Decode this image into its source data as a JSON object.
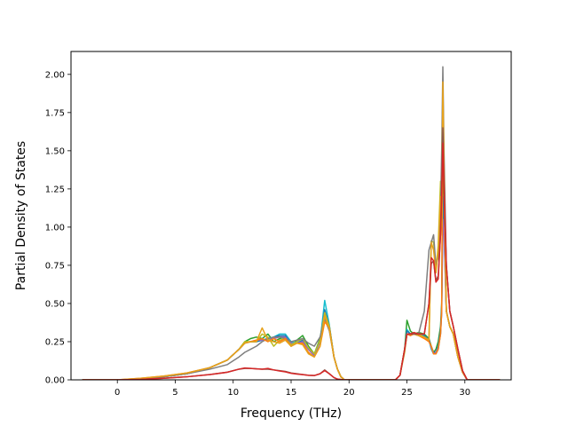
{
  "chart_data": {
    "type": "line",
    "title": "",
    "xlabel": "Frequency (THz)",
    "ylabel": "Partial Density of States",
    "xlim": [
      -4.0,
      34.0
    ],
    "ylim": [
      0.0,
      2.15
    ],
    "xticks": [
      0,
      5,
      10,
      15,
      20,
      25,
      30
    ],
    "yticks": [
      0.0,
      0.25,
      0.5,
      0.75,
      1.0,
      1.25,
      1.5,
      1.75,
      2.0
    ],
    "xtick_labels": [
      "0",
      "5",
      "10",
      "15",
      "20",
      "25",
      "30"
    ],
    "ytick_labels": [
      "0.00",
      "0.25",
      "0.50",
      "0.75",
      "1.00",
      "1.25",
      "1.50",
      "1.75",
      "2.00"
    ],
    "grid": false,
    "legend": "none",
    "series": [
      {
        "color": "#2ca02c",
        "x": [
          -3.0,
          0.0,
          2.0,
          4.0,
          6.0,
          8.0,
          9.5,
          10.5,
          11.0,
          11.5,
          12.0,
          12.5,
          13.0,
          13.5,
          14.0,
          14.5,
          15.0,
          15.5,
          16.0,
          16.5,
          17.0,
          17.5,
          17.9,
          18.3,
          18.7,
          19.0,
          19.3,
          19.6,
          24.0,
          24.4,
          24.8,
          25.0,
          25.3,
          25.6,
          26.0,
          26.5,
          26.9,
          27.1,
          27.3,
          27.5,
          27.7,
          27.9,
          28.0,
          28.1,
          28.2,
          28.4,
          28.7,
          29.0,
          29.4,
          29.8,
          30.2,
          31.0,
          33.0
        ],
        "y": [
          0.0,
          0.0,
          0.005,
          0.02,
          0.04,
          0.08,
          0.13,
          0.2,
          0.25,
          0.27,
          0.28,
          0.27,
          0.3,
          0.25,
          0.27,
          0.28,
          0.22,
          0.26,
          0.29,
          0.22,
          0.17,
          0.27,
          0.45,
          0.35,
          0.15,
          0.07,
          0.02,
          0.0,
          0.0,
          0.03,
          0.2,
          0.39,
          0.32,
          0.3,
          0.31,
          0.3,
          0.27,
          0.22,
          0.18,
          0.2,
          0.25,
          0.35,
          0.5,
          1.45,
          1.2,
          0.45,
          0.35,
          0.3,
          0.15,
          0.05,
          0.0,
          0.0,
          0.0
        ]
      },
      {
        "color": "#17becf",
        "x": [
          -3.0,
          0.0,
          2.0,
          4.0,
          6.0,
          8.0,
          9.5,
          10.5,
          11.0,
          11.5,
          12.0,
          12.5,
          13.0,
          13.5,
          14.0,
          14.5,
          15.0,
          15.5,
          16.0,
          16.5,
          17.0,
          17.5,
          17.9,
          18.3,
          18.7,
          19.0,
          19.3,
          19.6,
          24.0,
          24.4,
          24.8,
          25.0,
          25.3,
          25.6,
          26.0,
          26.5,
          26.9,
          27.1,
          27.3,
          27.5,
          27.7,
          27.9,
          28.0,
          28.1,
          28.2,
          28.4,
          28.7,
          29.0,
          29.4,
          29.8,
          30.2,
          31.0,
          33.0
        ],
        "y": [
          0.0,
          0.0,
          0.005,
          0.02,
          0.04,
          0.08,
          0.13,
          0.2,
          0.24,
          0.25,
          0.25,
          0.26,
          0.27,
          0.28,
          0.3,
          0.3,
          0.25,
          0.24,
          0.25,
          0.2,
          0.16,
          0.25,
          0.52,
          0.36,
          0.15,
          0.07,
          0.02,
          0.0,
          0.0,
          0.03,
          0.2,
          0.33,
          0.3,
          0.3,
          0.3,
          0.29,
          0.26,
          0.2,
          0.17,
          0.17,
          0.2,
          0.3,
          0.45,
          1.1,
          1.0,
          0.45,
          0.35,
          0.3,
          0.15,
          0.05,
          0.0,
          0.0,
          0.0
        ]
      },
      {
        "color": "#1f77b4",
        "x": [
          -3.0,
          0.0,
          2.0,
          4.0,
          6.0,
          8.0,
          9.5,
          10.5,
          11.0,
          11.5,
          12.0,
          12.5,
          13.0,
          13.5,
          14.0,
          14.5,
          15.0,
          15.5,
          16.0,
          16.5,
          17.0,
          17.5,
          17.9,
          18.3,
          18.7,
          19.0,
          19.3,
          19.6,
          24.0,
          24.4,
          24.8,
          25.0,
          25.3,
          25.6,
          26.0,
          26.5,
          26.9,
          27.1,
          27.3,
          27.5,
          27.7,
          27.9,
          28.0,
          28.1,
          28.2,
          28.4,
          28.7,
          29.0,
          29.4,
          29.8,
          30.2,
          31.0,
          33.0
        ],
        "y": [
          0.0,
          0.0,
          0.005,
          0.02,
          0.04,
          0.08,
          0.13,
          0.2,
          0.24,
          0.25,
          0.25,
          0.26,
          0.27,
          0.28,
          0.29,
          0.29,
          0.24,
          0.24,
          0.26,
          0.2,
          0.16,
          0.25,
          0.46,
          0.35,
          0.15,
          0.07,
          0.02,
          0.0,
          0.0,
          0.03,
          0.2,
          0.32,
          0.3,
          0.3,
          0.29,
          0.29,
          0.26,
          0.21,
          0.18,
          0.18,
          0.22,
          0.32,
          0.47,
          1.2,
          1.05,
          0.45,
          0.35,
          0.3,
          0.15,
          0.05,
          0.0,
          0.0,
          0.0
        ]
      },
      {
        "color": "#9467bd",
        "x": [
          -3.0,
          0.0,
          2.0,
          4.0,
          6.0,
          8.0,
          9.5,
          10.5,
          11.0,
          11.5,
          12.0,
          12.5,
          13.0,
          13.5,
          14.0,
          14.5,
          15.0,
          15.5,
          16.0,
          16.5,
          17.0,
          17.5,
          17.9,
          18.3,
          18.7,
          19.0,
          19.3,
          19.6,
          24.0,
          24.4,
          24.8,
          25.0,
          25.3,
          25.6,
          26.0,
          26.5,
          26.9,
          27.1,
          27.3,
          27.5,
          27.7,
          27.9,
          28.0,
          28.1,
          28.2,
          28.4,
          28.7,
          29.0,
          29.4,
          29.8,
          30.2,
          31.0,
          33.0
        ],
        "y": [
          0.0,
          0.0,
          0.005,
          0.02,
          0.04,
          0.08,
          0.13,
          0.2,
          0.24,
          0.25,
          0.26,
          0.26,
          0.26,
          0.27,
          0.28,
          0.28,
          0.24,
          0.24,
          0.25,
          0.2,
          0.16,
          0.25,
          0.44,
          0.34,
          0.15,
          0.07,
          0.02,
          0.0,
          0.0,
          0.03,
          0.2,
          0.3,
          0.29,
          0.3,
          0.29,
          0.28,
          0.26,
          0.21,
          0.17,
          0.18,
          0.21,
          0.3,
          0.44,
          1.05,
          0.95,
          0.45,
          0.35,
          0.3,
          0.15,
          0.05,
          0.0,
          0.0,
          0.0
        ]
      },
      {
        "color": "#bcbd22",
        "x": [
          -3.0,
          0.0,
          2.0,
          4.0,
          6.0,
          8.0,
          9.5,
          10.5,
          11.0,
          11.5,
          12.0,
          12.5,
          13.0,
          13.5,
          14.0,
          14.5,
          15.0,
          15.5,
          16.0,
          16.5,
          17.0,
          17.5,
          17.9,
          18.3,
          18.7,
          19.0,
          19.3,
          19.6,
          24.0,
          24.4,
          24.8,
          25.0,
          25.3,
          25.6,
          26.0,
          26.5,
          26.9,
          27.1,
          27.3,
          27.5,
          27.7,
          27.9,
          28.0,
          28.1,
          28.2,
          28.4,
          28.7,
          29.0,
          29.4,
          29.8,
          30.2,
          31.0,
          33.0
        ],
        "y": [
          0.0,
          0.0,
          0.005,
          0.02,
          0.04,
          0.08,
          0.13,
          0.2,
          0.25,
          0.25,
          0.25,
          0.3,
          0.28,
          0.22,
          0.26,
          0.27,
          0.23,
          0.25,
          0.27,
          0.21,
          0.17,
          0.26,
          0.44,
          0.35,
          0.15,
          0.07,
          0.02,
          0.0,
          0.0,
          0.03,
          0.18,
          0.3,
          0.3,
          0.31,
          0.3,
          0.28,
          0.26,
          0.91,
          0.9,
          0.72,
          0.88,
          1.3,
          1.1,
          1.9,
          1.35,
          0.45,
          0.35,
          0.3,
          0.15,
          0.05,
          0.0,
          0.0,
          0.0
        ]
      },
      {
        "color": "#7f7f7f",
        "x": [
          -3.0,
          0.0,
          2.0,
          4.0,
          6.0,
          8.0,
          9.5,
          10.5,
          11.0,
          11.5,
          12.0,
          12.5,
          13.0,
          13.5,
          14.0,
          14.5,
          15.0,
          15.5,
          16.0,
          16.5,
          17.0,
          17.5,
          17.9,
          18.3,
          18.7,
          19.0,
          19.3,
          19.6,
          24.0,
          24.4,
          24.8,
          25.0,
          25.3,
          25.6,
          26.0,
          26.5,
          26.9,
          27.1,
          27.3,
          27.5,
          27.7,
          27.9,
          28.0,
          28.1,
          28.2,
          28.4,
          28.7,
          29.0,
          29.4,
          29.8,
          30.2,
          31.0,
          33.0
        ],
        "y": [
          0.0,
          0.0,
          0.005,
          0.02,
          0.04,
          0.07,
          0.1,
          0.15,
          0.18,
          0.2,
          0.22,
          0.25,
          0.27,
          0.28,
          0.28,
          0.27,
          0.25,
          0.26,
          0.27,
          0.24,
          0.22,
          0.28,
          0.4,
          0.32,
          0.15,
          0.07,
          0.02,
          0.0,
          0.0,
          0.03,
          0.2,
          0.3,
          0.3,
          0.3,
          0.3,
          0.45,
          0.85,
          0.9,
          0.95,
          0.75,
          0.8,
          1.1,
          1.5,
          2.05,
          1.5,
          0.75,
          0.45,
          0.35,
          0.2,
          0.06,
          0.0,
          0.0,
          0.0
        ]
      },
      {
        "color": "#ff7f0e",
        "x": [
          -3.0,
          0.0,
          2.0,
          4.0,
          6.0,
          8.0,
          9.5,
          10.5,
          11.0,
          11.5,
          12.0,
          12.5,
          13.0,
          13.5,
          14.0,
          14.5,
          15.0,
          15.5,
          16.0,
          16.5,
          17.0,
          17.5,
          17.9,
          18.3,
          18.7,
          19.0,
          19.3,
          19.6,
          24.0,
          24.4,
          24.8,
          25.0,
          25.3,
          25.6,
          26.0,
          26.5,
          26.9,
          27.1,
          27.3,
          27.5,
          27.7,
          27.9,
          28.0,
          28.1,
          28.2,
          28.4,
          28.7,
          29.0,
          29.4,
          29.8,
          30.2,
          31.0,
          33.0
        ],
        "y": [
          0.0,
          0.0,
          0.01,
          0.025,
          0.045,
          0.08,
          0.13,
          0.2,
          0.24,
          0.25,
          0.26,
          0.27,
          0.25,
          0.27,
          0.25,
          0.27,
          0.22,
          0.24,
          0.24,
          0.18,
          0.15,
          0.22,
          0.38,
          0.34,
          0.15,
          0.07,
          0.02,
          0.0,
          0.0,
          0.03,
          0.2,
          0.3,
          0.29,
          0.3,
          0.29,
          0.27,
          0.25,
          0.22,
          0.17,
          0.17,
          0.2,
          0.3,
          0.45,
          1.75,
          1.3,
          0.45,
          0.35,
          0.3,
          0.15,
          0.05,
          0.0,
          0.0,
          0.0
        ]
      },
      {
        "color": "#e6a11b",
        "x": [
          -3.0,
          0.0,
          2.0,
          4.0,
          6.0,
          8.0,
          9.5,
          10.5,
          11.0,
          11.5,
          12.0,
          12.5,
          13.0,
          13.5,
          14.0,
          14.5,
          15.0,
          15.5,
          16.0,
          16.5,
          17.0,
          17.5,
          17.9,
          18.3,
          18.7,
          19.0,
          19.3,
          19.6,
          24.0,
          24.4,
          24.8,
          25.0,
          25.3,
          25.6,
          26.0,
          26.5,
          26.9,
          27.1,
          27.3,
          27.5,
          27.7,
          27.9,
          28.0,
          28.1,
          28.2,
          28.4,
          28.7,
          29.0,
          29.4,
          29.8,
          30.2,
          31.0,
          33.0
        ],
        "y": [
          0.0,
          0.0,
          0.01,
          0.025,
          0.045,
          0.08,
          0.13,
          0.2,
          0.24,
          0.25,
          0.25,
          0.34,
          0.26,
          0.25,
          0.24,
          0.26,
          0.22,
          0.24,
          0.23,
          0.17,
          0.15,
          0.22,
          0.42,
          0.33,
          0.15,
          0.07,
          0.02,
          0.0,
          0.0,
          0.03,
          0.2,
          0.3,
          0.3,
          0.3,
          0.29,
          0.28,
          0.26,
          0.9,
          0.85,
          0.7,
          0.85,
          1.2,
          1.0,
          1.95,
          1.4,
          0.45,
          0.35,
          0.3,
          0.15,
          0.05,
          0.0,
          0.0,
          0.0
        ]
      },
      {
        "color": "#8c564b",
        "x": [
          -3.0,
          0.0,
          2.0,
          4.0,
          6.0,
          8.0,
          9.5,
          10.5,
          11.0,
          11.5,
          12.0,
          12.5,
          13.0,
          13.5,
          14.0,
          14.5,
          15.0,
          15.5,
          16.0,
          16.5,
          17.0,
          17.5,
          17.9,
          18.3,
          18.7,
          19.0,
          19.3,
          19.6,
          24.0,
          24.4,
          24.8,
          25.0,
          25.3,
          25.6,
          26.0,
          26.5,
          26.9,
          27.1,
          27.3,
          27.5,
          27.7,
          27.9,
          28.0,
          28.1,
          28.2,
          28.4,
          28.7,
          29.0,
          29.4,
          29.8,
          30.2,
          31.0,
          33.0
        ],
        "y": [
          0.0,
          0.0,
          0.003,
          0.01,
          0.02,
          0.035,
          0.05,
          0.07,
          0.075,
          0.075,
          0.073,
          0.07,
          0.07,
          0.065,
          0.06,
          0.055,
          0.045,
          0.04,
          0.035,
          0.03,
          0.028,
          0.04,
          0.065,
          0.04,
          0.015,
          0.005,
          0.002,
          0.0,
          0.0,
          0.03,
          0.2,
          0.3,
          0.3,
          0.3,
          0.3,
          0.3,
          0.5,
          0.76,
          0.78,
          0.65,
          0.68,
          0.95,
          1.25,
          1.65,
          1.3,
          0.75,
          0.45,
          0.35,
          0.2,
          0.06,
          0.0,
          0.0,
          0.0
        ]
      },
      {
        "color": "#d62728",
        "x": [
          -3.0,
          0.0,
          2.0,
          4.0,
          6.0,
          8.0,
          9.5,
          10.5,
          11.0,
          11.5,
          12.0,
          12.5,
          13.0,
          13.5,
          14.0,
          14.5,
          15.0,
          15.5,
          16.0,
          16.5,
          17.0,
          17.5,
          17.9,
          18.3,
          18.7,
          19.0,
          19.3,
          19.6,
          24.0,
          24.4,
          24.8,
          25.0,
          25.3,
          25.6,
          26.0,
          26.5,
          26.9,
          27.1,
          27.3,
          27.5,
          27.7,
          27.9,
          28.0,
          28.1,
          28.2,
          28.4,
          28.7,
          29.0,
          29.4,
          29.8,
          30.2,
          31.0,
          33.0
        ],
        "y": [
          0.0,
          0.0,
          0.003,
          0.01,
          0.02,
          0.035,
          0.05,
          0.07,
          0.078,
          0.075,
          0.072,
          0.07,
          0.075,
          0.065,
          0.058,
          0.052,
          0.043,
          0.038,
          0.034,
          0.03,
          0.028,
          0.04,
          0.06,
          0.04,
          0.015,
          0.005,
          0.002,
          0.0,
          0.0,
          0.03,
          0.2,
          0.3,
          0.3,
          0.31,
          0.3,
          0.3,
          0.5,
          0.8,
          0.78,
          0.64,
          0.66,
          0.95,
          1.2,
          1.55,
          1.25,
          0.75,
          0.45,
          0.35,
          0.2,
          0.06,
          0.0,
          0.0,
          0.0
        ]
      }
    ]
  }
}
